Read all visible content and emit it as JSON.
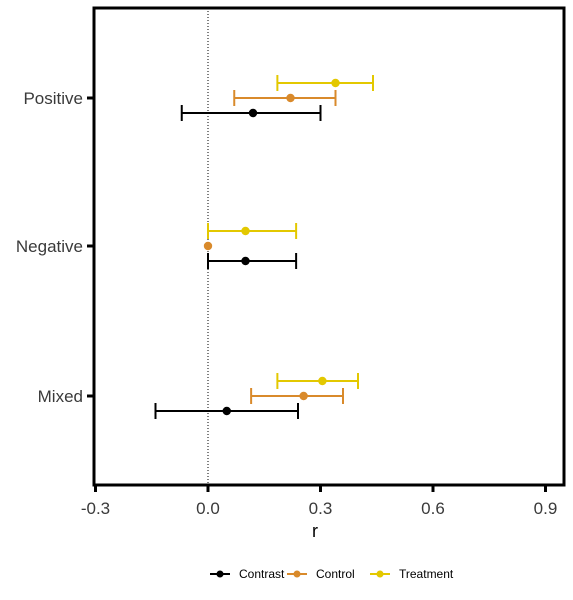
{
  "chart_data": {
    "type": "scatter",
    "subtype": "forest-plot-horizontal-errorbars",
    "xlabel": "r",
    "ylabel": "",
    "xlim": [
      -0.3,
      0.95
    ],
    "x_ticks": [
      -0.3,
      0.0,
      0.3,
      0.6,
      0.9
    ],
    "x_tick_labels": [
      "-0.3",
      "0.0",
      "0.3",
      "0.6",
      "0.9"
    ],
    "categories": [
      "Positive",
      "Negative",
      "Mixed"
    ],
    "reference_line": {
      "x": 0,
      "style": "dotted"
    },
    "grid": false,
    "legend_position": "bottom",
    "series": [
      {
        "name": "Contrast",
        "color": "#000000",
        "points": [
          {
            "category": "Positive",
            "x": 0.12,
            "lo": -0.07,
            "hi": 0.3
          },
          {
            "category": "Negative",
            "x": 0.1,
            "lo": 0.0,
            "hi": 0.235
          },
          {
            "category": "Mixed",
            "x": 0.05,
            "lo": -0.14,
            "hi": 0.24
          }
        ]
      },
      {
        "name": "Control",
        "color": "#d98a2b",
        "points": [
          {
            "category": "Positive",
            "x": 0.22,
            "lo": 0.07,
            "hi": 0.34
          },
          {
            "category": "Negative",
            "x": 0.0,
            "lo": 0.0,
            "hi": 0.0
          },
          {
            "category": "Mixed",
            "x": 0.255,
            "lo": 0.115,
            "hi": 0.36
          }
        ]
      },
      {
        "name": "Treatment",
        "color": "#e3c800",
        "points": [
          {
            "category": "Positive",
            "x": 0.34,
            "lo": 0.185,
            "hi": 0.44
          },
          {
            "category": "Negative",
            "x": 0.1,
            "lo": 0.0,
            "hi": 0.235
          },
          {
            "category": "Mixed",
            "x": 0.305,
            "lo": 0.185,
            "hi": 0.4
          }
        ]
      }
    ]
  }
}
